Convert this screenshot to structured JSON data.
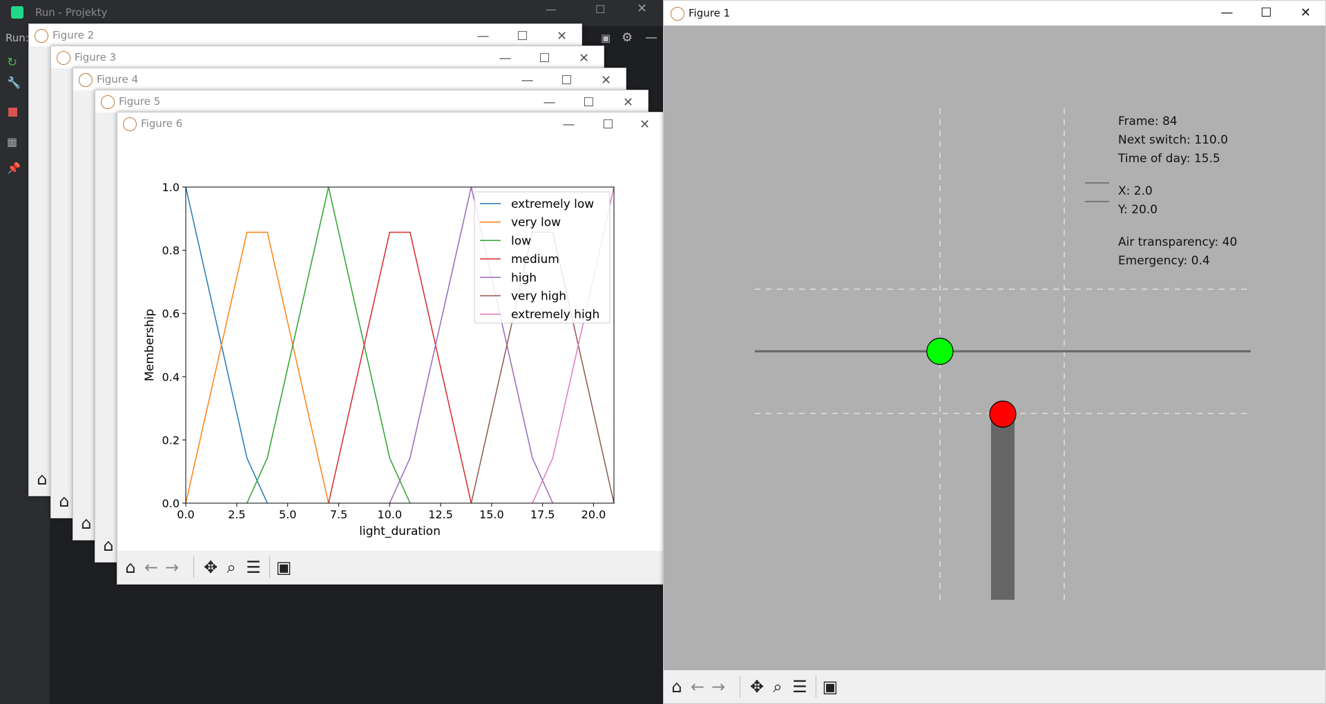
{
  "ide": {
    "title": "Run - Projekty",
    "run_label": "Run:"
  },
  "figures_back": [
    {
      "title": "Figure 2"
    },
    {
      "title": "Figure 3"
    },
    {
      "title": "Figure 4"
    },
    {
      "title": "Figure 5"
    }
  ],
  "figure6": {
    "title": "Figure 6",
    "chart_data": {
      "type": "line",
      "xlabel": "light_duration",
      "ylabel": "Membership",
      "xlim": [
        0,
        21
      ],
      "ylim": [
        0,
        1.0
      ],
      "x_ticks": [
        "0.0",
        "2.5",
        "5.0",
        "7.5",
        "10.0",
        "12.5",
        "15.0",
        "17.5",
        "20.0"
      ],
      "y_ticks": [
        "0.0",
        "0.2",
        "0.4",
        "0.6",
        "0.8",
        "1.0"
      ],
      "legend_position": "top-right",
      "series": [
        {
          "name": "extremely low",
          "color": "#1f77b4",
          "points": [
            [
              0,
              1.0
            ],
            [
              3,
              0.143
            ],
            [
              4,
              0
            ]
          ]
        },
        {
          "name": "very low",
          "color": "#ff7f0e",
          "points": [
            [
              0,
              0
            ],
            [
              3,
              0.857
            ],
            [
              4,
              0.857
            ],
            [
              7,
              0
            ]
          ]
        },
        {
          "name": "low",
          "color": "#2ca02c",
          "points": [
            [
              3,
              0
            ],
            [
              4,
              0.143
            ],
            [
              7,
              1.0
            ],
            [
              10,
              0.143
            ],
            [
              11,
              0
            ]
          ]
        },
        {
          "name": "medium",
          "color": "#d62728",
          "points": [
            [
              7,
              0
            ],
            [
              10,
              0.857
            ],
            [
              11,
              0.857
            ],
            [
              14,
              0
            ]
          ]
        },
        {
          "name": "high",
          "color": "#9467bd",
          "points": [
            [
              10,
              0
            ],
            [
              11,
              0.143
            ],
            [
              14,
              1.0
            ],
            [
              17,
              0.143
            ],
            [
              18,
              0
            ]
          ]
        },
        {
          "name": "very high",
          "color": "#8c564b",
          "points": [
            [
              14,
              0
            ],
            [
              17,
              0.857
            ],
            [
              18,
              0.857
            ],
            [
              21,
              0
            ]
          ]
        },
        {
          "name": "extremely high",
          "color": "#e377c2",
          "points": [
            [
              17,
              0
            ],
            [
              18,
              0.143
            ],
            [
              21,
              1.0
            ]
          ]
        }
      ]
    }
  },
  "figure1": {
    "title": "Figure 1",
    "info": {
      "frame": "Frame: 84",
      "next_switch": "Next switch: 110.0",
      "time_of_day": "Time of day: 15.5",
      "x": "X: 2.0",
      "y": "Y: 20.0",
      "air": "Air transparency: 40",
      "emergency": "Emergency: 0.4"
    },
    "colors": {
      "background": "#b0b0b0",
      "green_light": "#00ff00",
      "red_light": "#ff0000",
      "road": "#666666"
    }
  }
}
